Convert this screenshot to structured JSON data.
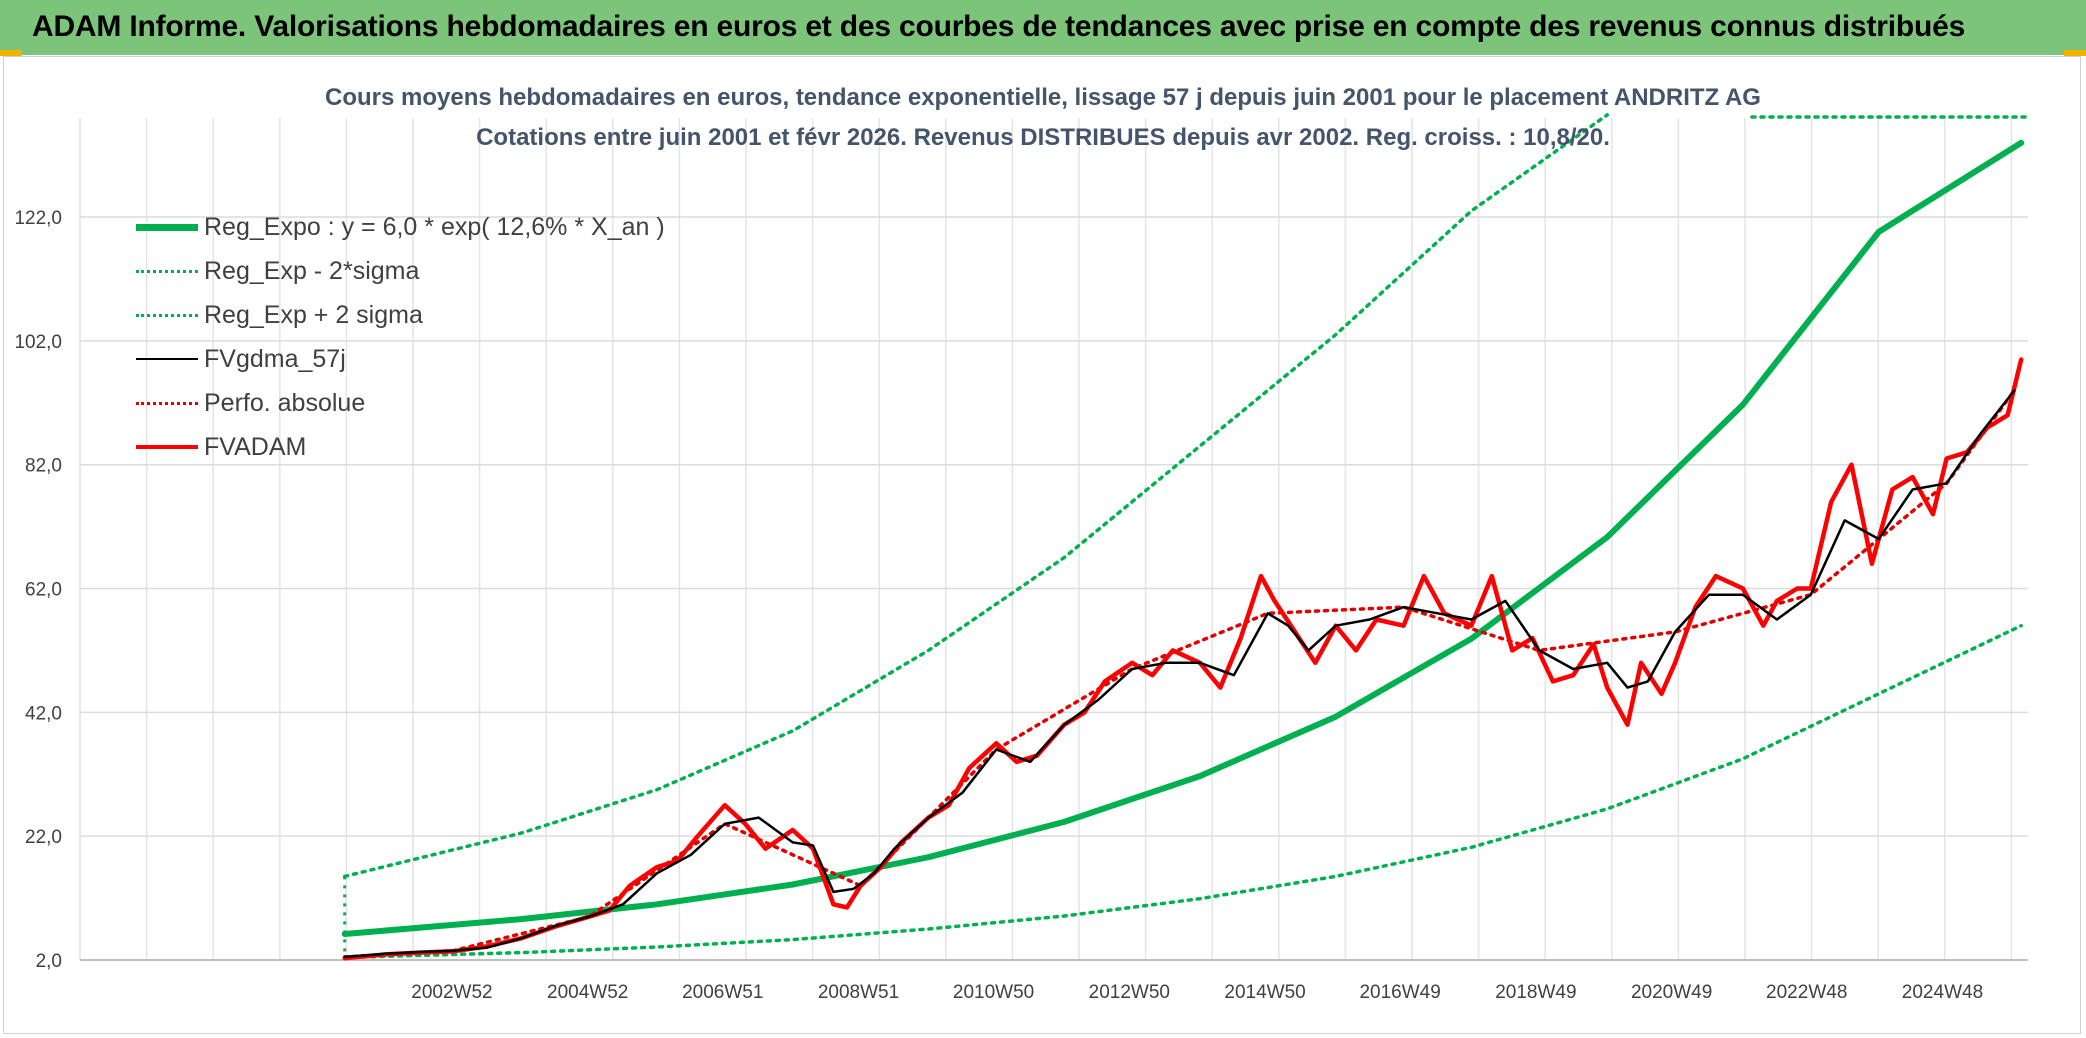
{
  "banner": {
    "title": "ADAM Informe. Valorisations hebdomadaires en euros et des courbes de tendances avec prise en compte des revenus connus distribués"
  },
  "chart_data": {
    "type": "line",
    "title": "Cours moyens hebdomadaires en euros, tendance exponentielle, lissage 57 j depuis juin 2001 pour le placement ANDRITZ AG",
    "subtitle": "Cotations entre juin 2001 et févr 2026. Revenus DISTRIBUES depuis avr 2002. Reg. croiss. : 10,8/20.",
    "xlabel": "",
    "ylabel": "",
    "x_range": [
      1997.5,
      2026.2
    ],
    "ylim": [
      2.0,
      138.0
    ],
    "y_ticks": [
      "2,0",
      "22,0",
      "42,0",
      "62,0",
      "82,0",
      "102,0",
      "122,0"
    ],
    "y_tick_values": [
      2,
      22,
      42,
      62,
      82,
      102,
      122
    ],
    "x_tick_labels": [
      "2002W52",
      "2004W52",
      "2006W51",
      "2008W51",
      "2010W50",
      "2012W50",
      "2014W50",
      "2016W49",
      "2018W49",
      "2020W49",
      "2022W48",
      "2024W48"
    ],
    "x_tick_years": [
      2002.98,
      2004.98,
      2006.97,
      2008.97,
      2010.96,
      2012.96,
      2014.96,
      2016.95,
      2018.95,
      2020.95,
      2022.94,
      2024.94
    ],
    "grid": true,
    "legend_position": "top-left",
    "series": [
      {
        "name": "Reg_Expo : y = 6,0 * exp( 12,6% *  X_an )",
        "color": "#00b050",
        "style": "solid-thick",
        "x": [
          2001.4,
          2004,
          2006,
          2008,
          2010,
          2012,
          2014,
          2016,
          2018,
          2020,
          2022,
          2024,
          2026.1
        ],
        "y": [
          6.2,
          8.6,
          11.0,
          14.2,
          18.6,
          24.3,
          31.7,
          41.3,
          53.9,
          70.3,
          91.7,
          119.6,
          134.0
        ]
      },
      {
        "name": "Reg_Exp - 2*sigma",
        "color": "#00b050",
        "style": "dotted",
        "x": [
          2001.4,
          2004,
          2006,
          2008,
          2010,
          2012,
          2014,
          2016,
          2018,
          2020,
          2022,
          2024,
          2026.1
        ],
        "y": [
          2.4,
          3.2,
          4.1,
          5.3,
          7.0,
          9.1,
          11.9,
          15.5,
          20.2,
          26.4,
          34.5,
          45.0,
          56.0
        ]
      },
      {
        "name": "Reg_Exp + 2 sigma",
        "color": "#00b050",
        "style": "dotted",
        "x": [
          2001.4,
          2004,
          2006,
          2008,
          2010,
          2012,
          2014,
          2016,
          2018,
          2020
        ],
        "y": [
          15.5,
          22.5,
          29.5,
          39.0,
          52.0,
          67.0,
          85.0,
          103.0,
          123.0,
          139.0
        ]
      },
      {
        "name": "FVgdma_57j",
        "color": "#000000",
        "style": "solid",
        "x": [
          2001.4,
          2002.0,
          2002.5,
          2003.0,
          2003.5,
          2004.0,
          2004.5,
          2005.0,
          2005.5,
          2006.0,
          2006.5,
          2007.0,
          2007.5,
          2008.0,
          2008.3,
          2008.6,
          2008.9,
          2009.2,
          2009.5,
          2010.0,
          2010.5,
          2011.0,
          2011.5,
          2012.0,
          2012.5,
          2013.0,
          2013.5,
          2014.0,
          2014.5,
          2015.0,
          2015.3,
          2015.6,
          2016.0,
          2016.5,
          2017.0,
          2017.5,
          2018.0,
          2018.5,
          2019.0,
          2019.5,
          2020.0,
          2020.3,
          2020.6,
          2021.0,
          2021.5,
          2022.0,
          2022.5,
          2023.0,
          2023.5,
          2024.0,
          2024.5,
          2025.0,
          2025.5,
          2026.0
        ],
        "y": [
          2.5,
          3.0,
          3.3,
          3.5,
          4.0,
          5.5,
          7.5,
          9.0,
          11.0,
          16.0,
          19.0,
          24.0,
          25.0,
          21.0,
          20.5,
          13.0,
          13.5,
          16.0,
          20.0,
          25.0,
          29.0,
          36.0,
          34.0,
          40.0,
          44.0,
          49.0,
          50.0,
          50.0,
          48.0,
          58.0,
          56.0,
          52.0,
          56.0,
          57.0,
          59.0,
          58.0,
          57.0,
          60.0,
          52.0,
          49.0,
          50.0,
          46.0,
          47.0,
          55.0,
          61.0,
          61.0,
          57.0,
          61.0,
          73.0,
          70.0,
          78.0,
          79.0,
          87.0,
          94.0
        ]
      },
      {
        "name": "Perfo. absolue",
        "color": "#e00000",
        "style": "dotted",
        "x": [
          2001.4,
          2003.0,
          2005.0,
          2007.0,
          2009.0,
          2011.0,
          2013.0,
          2015.0,
          2017.0,
          2019.0,
          2021.0,
          2023.0,
          2025.0,
          2026.0
        ],
        "y": [
          2.5,
          3.5,
          9.0,
          24.0,
          14.0,
          36.0,
          49.0,
          58.0,
          59.0,
          52.0,
          55.0,
          61.0,
          79.0,
          94.0
        ]
      },
      {
        "name": "FVADAM",
        "color": "#ff0000",
        "style": "solid-thick",
        "x": [
          2001.4,
          2002.0,
          2002.5,
          2003.0,
          2003.5,
          2004.0,
          2004.5,
          2005.0,
          2005.3,
          2005.6,
          2006.0,
          2006.3,
          2006.6,
          2007.0,
          2007.3,
          2007.6,
          2008.0,
          2008.3,
          2008.6,
          2008.8,
          2009.0,
          2009.3,
          2009.6,
          2010.0,
          2010.3,
          2010.6,
          2011.0,
          2011.3,
          2011.6,
          2012.0,
          2012.3,
          2012.6,
          2013.0,
          2013.3,
          2013.6,
          2014.0,
          2014.3,
          2014.6,
          2014.9,
          2015.1,
          2015.4,
          2015.7,
          2016.0,
          2016.3,
          2016.6,
          2017.0,
          2017.3,
          2017.6,
          2018.0,
          2018.3,
          2018.6,
          2018.9,
          2019.2,
          2019.5,
          2019.8,
          2020.0,
          2020.3,
          2020.5,
          2020.8,
          2021.0,
          2021.3,
          2021.6,
          2022.0,
          2022.3,
          2022.5,
          2022.8,
          2023.0,
          2023.3,
          2023.6,
          2023.9,
          2024.2,
          2024.5,
          2024.8,
          2025.0,
          2025.3,
          2025.6,
          2025.9,
          2026.1
        ],
        "y": [
          2.3,
          2.9,
          3.2,
          3.4,
          4.2,
          5.5,
          7.4,
          9.0,
          10.0,
          14.0,
          17.0,
          18.0,
          22.0,
          27.0,
          24.0,
          20.0,
          23.0,
          20.0,
          11.0,
          10.5,
          14.0,
          17.0,
          21.0,
          25.0,
          27.0,
          33.0,
          37.0,
          34.0,
          35.0,
          40.0,
          42.0,
          47.0,
          50.0,
          48.0,
          52.0,
          50.0,
          46.0,
          54.0,
          64.0,
          60.0,
          55.0,
          50.0,
          56.0,
          52.0,
          57.0,
          56.0,
          64.0,
          58.0,
          56.0,
          64.0,
          52.0,
          54.0,
          47.0,
          48.0,
          53.0,
          46.0,
          40.0,
          50.0,
          45.0,
          50.0,
          59.0,
          64.0,
          62.0,
          56.0,
          60.0,
          62.0,
          62.0,
          76.0,
          82.0,
          66.0,
          78.0,
          80.0,
          74.0,
          83.0,
          84.0,
          88.0,
          90.0,
          99.0
        ]
      }
    ]
  }
}
